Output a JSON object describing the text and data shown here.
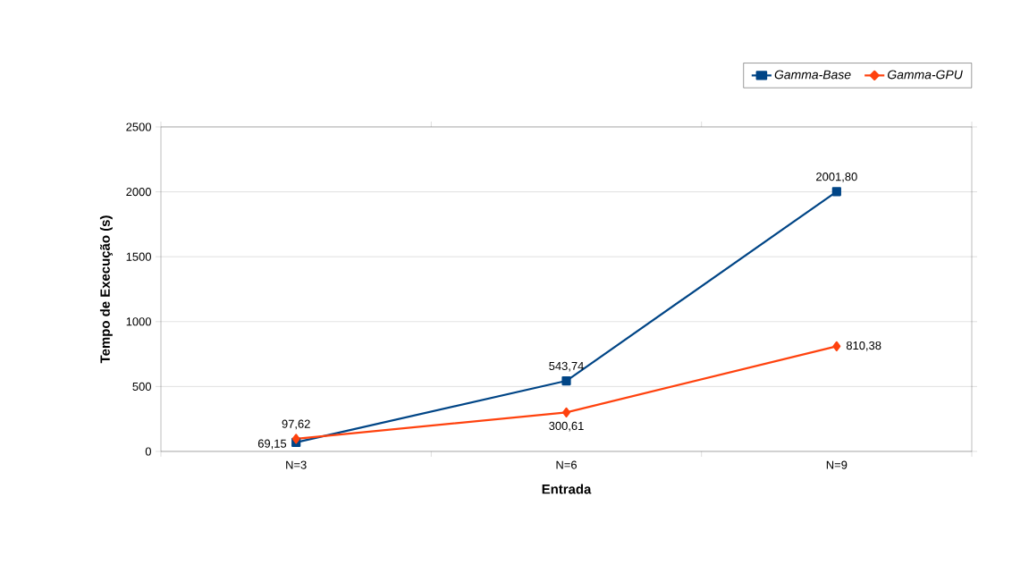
{
  "chart_data": {
    "type": "line",
    "xlabel": "Entrada",
    "ylabel": "Tempo de Execução (s)",
    "categories": [
      "N=3",
      "N=6",
      "N=9"
    ],
    "series": [
      {
        "name": "Gamma-Base",
        "color": "#004586",
        "marker": "square",
        "values": [
          69.15,
          543.74,
          2001.8
        ],
        "value_labels": [
          "69,15",
          "543,74",
          "2001,80"
        ]
      },
      {
        "name": "Gamma-GPU",
        "color": "#ff420e",
        "marker": "diamond",
        "values": [
          97.62,
          300.61,
          810.38
        ],
        "value_labels": [
          "97,62",
          "300,61",
          "810,38"
        ]
      }
    ],
    "ylim": [
      0,
      2500
    ],
    "yticks": [
      0,
      500,
      1000,
      1500,
      2000,
      2500
    ],
    "grid": "y",
    "legend": "top right"
  }
}
